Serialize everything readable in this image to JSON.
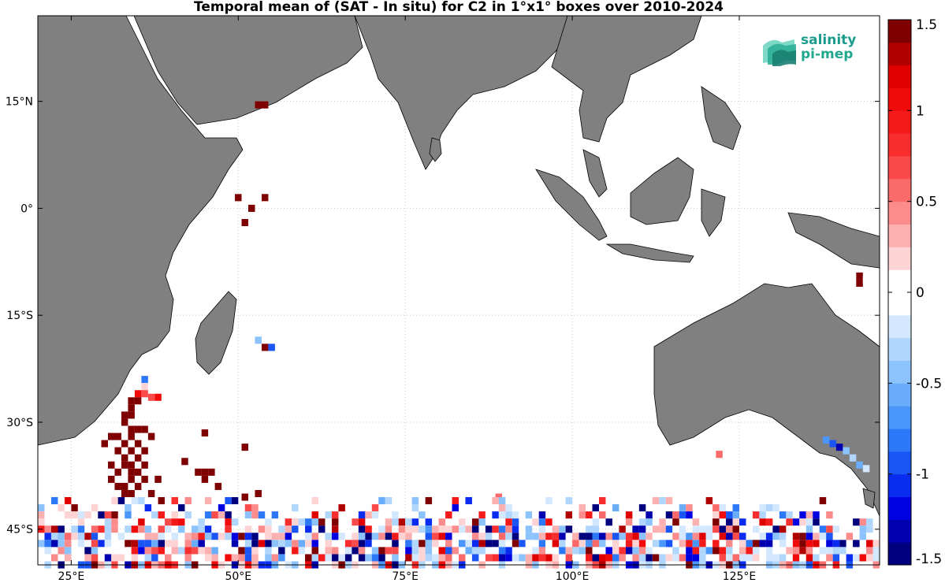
{
  "title": "Temporal mean of (SAT - In situ) for C2 in 1°x1° boxes over 2010-2024",
  "logo": {
    "line1": "salinity",
    "line2": "pi-mep"
  },
  "axes": {
    "x_ticks": [
      {
        "value": 25,
        "label": "25°E"
      },
      {
        "value": 50,
        "label": "50°E"
      },
      {
        "value": 75,
        "label": "75°E"
      },
      {
        "value": 100,
        "label": "100°E"
      },
      {
        "value": 125,
        "label": "125°E"
      }
    ],
    "y_ticks": [
      {
        "value": 15,
        "label": "15°N"
      },
      {
        "value": 0,
        "label": "0°"
      },
      {
        "value": -15,
        "label": "15°S"
      },
      {
        "value": -30,
        "label": "30°S"
      },
      {
        "value": -45,
        "label": "45°S"
      }
    ],
    "lon_range": [
      20,
      146
    ],
    "lat_range": [
      -50,
      27
    ]
  },
  "colorbar": {
    "range": [
      -1.5,
      1.5
    ],
    "ticks": [
      {
        "value": 1.5,
        "label": "1.5"
      },
      {
        "value": 1,
        "label": "1"
      },
      {
        "value": 0.5,
        "label": "0.5"
      },
      {
        "value": 0,
        "label": "0"
      },
      {
        "value": -0.5,
        "label": "-0.5"
      },
      {
        "value": -1,
        "label": "-1"
      },
      {
        "value": -1.5,
        "label": "-1.5"
      }
    ],
    "colors_bottom_to_top": [
      "#00007f",
      "#0000b0",
      "#0000e0",
      "#0a2cf0",
      "#1a55f5",
      "#2d78f8",
      "#4a96fa",
      "#6aaefb",
      "#8cc3fc",
      "#b0d6fd",
      "#d3e8fe",
      "#ffffff",
      "#ffffff",
      "#fdd3d3",
      "#fdb0b0",
      "#fc8c8c",
      "#fb6a6a",
      "#fa4a4a",
      "#f82d2d",
      "#f51a1a",
      "#f00a0a",
      "#e00000",
      "#b00000",
      "#7f0000"
    ]
  },
  "cells": [
    {
      "lon": 53,
      "lat": 14.5,
      "v": 1.5
    },
    {
      "lon": 54,
      "lat": 14.5,
      "v": 1.5
    },
    {
      "lon": 50,
      "lat": 1.5,
      "v": 1.5
    },
    {
      "lon": 54,
      "lat": 1.5,
      "v": 1.5
    },
    {
      "lon": 52,
      "lat": 0,
      "v": 1.5
    },
    {
      "lon": 51,
      "lat": -2,
      "v": 1.5
    },
    {
      "lon": 143,
      "lat": -9.5,
      "v": 1.5
    },
    {
      "lon": 143,
      "lat": -10.5,
      "v": 1.5
    },
    {
      "lon": 144,
      "lat": -10,
      "v": 0.1
    },
    {
      "lon": 53,
      "lat": -18.5,
      "v": -0.4
    },
    {
      "lon": 54,
      "lat": -19.5,
      "v": 1.5
    },
    {
      "lon": 55,
      "lat": -19.5,
      "v": -0.9
    },
    {
      "lon": 36,
      "lat": -24,
      "v": -0.8
    },
    {
      "lon": 36,
      "lat": -25,
      "v": 0.2
    },
    {
      "lon": 35,
      "lat": -26,
      "v": 1.0
    },
    {
      "lon": 36,
      "lat": -26,
      "v": 0.7
    },
    {
      "lon": 37,
      "lat": -26.5,
      "v": 0.7
    },
    {
      "lon": 38,
      "lat": -26.5,
      "v": 1.0
    },
    {
      "lon": 34,
      "lat": -27,
      "v": 1.5
    },
    {
      "lon": 35,
      "lat": -27,
      "v": 1.5
    },
    {
      "lon": 34,
      "lat": -28,
      "v": 1.5
    },
    {
      "lon": 33,
      "lat": -29,
      "v": 1.5
    },
    {
      "lon": 34,
      "lat": -29,
      "v": 1.5
    },
    {
      "lon": 33,
      "lat": -30,
      "v": 1.5
    },
    {
      "lon": 35,
      "lat": -31,
      "v": 1.5
    },
    {
      "lon": 36,
      "lat": -31,
      "v": 1.5
    },
    {
      "lon": 34,
      "lat": -31,
      "v": 1.5
    },
    {
      "lon": 31,
      "lat": -32,
      "v": 1.5
    },
    {
      "lon": 32,
      "lat": -32,
      "v": 1.5
    },
    {
      "lon": 34,
      "lat": -32,
      "v": 1.5
    },
    {
      "lon": 37,
      "lat": -32,
      "v": 1.5
    },
    {
      "lon": 30,
      "lat": -33,
      "v": 1.5
    },
    {
      "lon": 33,
      "lat": -33,
      "v": 1.5
    },
    {
      "lon": 35,
      "lat": -33,
      "v": 1.5
    },
    {
      "lon": 32,
      "lat": -34,
      "v": 1.5
    },
    {
      "lon": 34,
      "lat": -34,
      "v": 1.5
    },
    {
      "lon": 36,
      "lat": -34,
      "v": 1.5
    },
    {
      "lon": 33,
      "lat": -35,
      "v": 1.5
    },
    {
      "lon": 35,
      "lat": -35,
      "v": 1.5
    },
    {
      "lon": 31,
      "lat": -36,
      "v": 1.5
    },
    {
      "lon": 33,
      "lat": -36,
      "v": 1.5
    },
    {
      "lon": 34,
      "lat": -36,
      "v": 1.5
    },
    {
      "lon": 36,
      "lat": -36,
      "v": 1.5
    },
    {
      "lon": 32,
      "lat": -37,
      "v": 1.5
    },
    {
      "lon": 34,
      "lat": -37,
      "v": 1.5
    },
    {
      "lon": 35,
      "lat": -37,
      "v": 1.5
    },
    {
      "lon": 31,
      "lat": -38,
      "v": 1.5
    },
    {
      "lon": 34,
      "lat": -38,
      "v": 1.5
    },
    {
      "lon": 36,
      "lat": -38,
      "v": 1.5
    },
    {
      "lon": 32,
      "lat": -39,
      "v": 1.5
    },
    {
      "lon": 33,
      "lat": -39,
      "v": 1.5
    },
    {
      "lon": 35,
      "lat": -39,
      "v": 1.5
    },
    {
      "lon": 33,
      "lat": -40,
      "v": 1.5
    },
    {
      "lon": 34,
      "lat": -40,
      "v": 1.5
    },
    {
      "lon": 37,
      "lat": -40,
      "v": 1.5
    },
    {
      "lon": 45,
      "lat": -31.5,
      "v": 1.5
    },
    {
      "lon": 51,
      "lat": -33.5,
      "v": 1.5
    },
    {
      "lon": 42,
      "lat": -35.5,
      "v": 1.5
    },
    {
      "lon": 45,
      "lat": -37,
      "v": 1.5
    },
    {
      "lon": 46,
      "lat": -37,
      "v": 1.5
    },
    {
      "lon": 44,
      "lat": -37,
      "v": 1.5
    },
    {
      "lon": 45,
      "lat": -38,
      "v": 1.5
    },
    {
      "lon": 47,
      "lat": -39,
      "v": 1.5
    },
    {
      "lon": 38,
      "lat": -38,
      "v": 1.5
    },
    {
      "lon": 53,
      "lat": -40,
      "v": 1.5
    },
    {
      "lon": 51,
      "lat": -40.5,
      "v": 1.5
    },
    {
      "lon": 89,
      "lat": -40.5,
      "v": 0.5
    },
    {
      "lon": 122,
      "lat": -34.5,
      "v": 0.5
    },
    {
      "lon": 138,
      "lat": -32.5,
      "v": -0.7
    },
    {
      "lon": 139,
      "lat": -33,
      "v": -1.0
    },
    {
      "lon": 140,
      "lat": -33.5,
      "v": -1.3
    },
    {
      "lon": 141,
      "lat": -34,
      "v": -0.5
    },
    {
      "lon": 142,
      "lat": -35,
      "v": -0.3
    },
    {
      "lon": 143,
      "lat": -36,
      "v": -0.6
    },
    {
      "lon": 144,
      "lat": -36.5,
      "v": -0.2
    }
  ],
  "south_band": {
    "lon_start": 20,
    "lon_end": 146,
    "lat_rows": [
      -41,
      -42,
      -43,
      -44,
      -45,
      -46,
      -47,
      -48,
      -49,
      -50
    ],
    "seed": 7
  }
}
